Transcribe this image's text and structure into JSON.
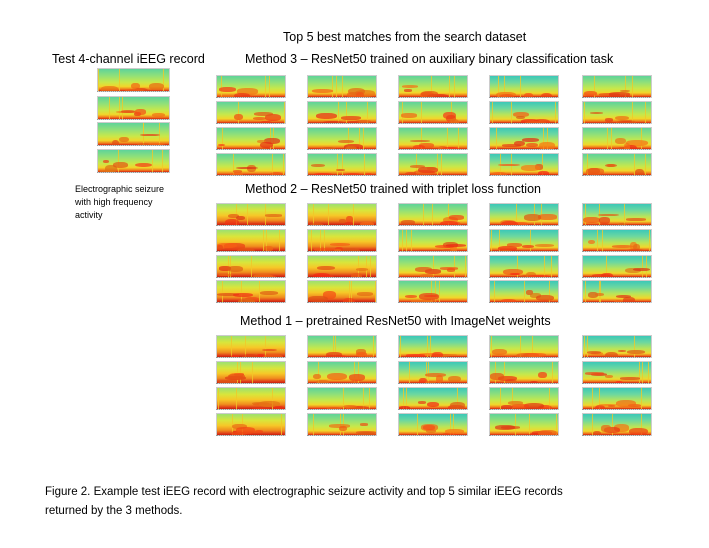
{
  "test": {
    "title": "Test 4-channel iEEG record",
    "note": "Electrographic seizure with high frequency activity"
  },
  "header": {
    "title": "Top 5 best matches from the search dataset"
  },
  "methods": [
    {
      "title": "Method 3 – ResNet50 trained on auxiliary binary classification task"
    },
    {
      "title": "Method 2 – ResNet50 trained with triplet loss function"
    },
    {
      "title": "Method 1 – pretrained ResNet50 with ImageNet weights"
    }
  ],
  "caption": {
    "line1": "Figure 2. Example test iEEG record with electrographic seizure activity and top 5 similar iEEG records",
    "line2": "returned by the 3 methods."
  }
}
